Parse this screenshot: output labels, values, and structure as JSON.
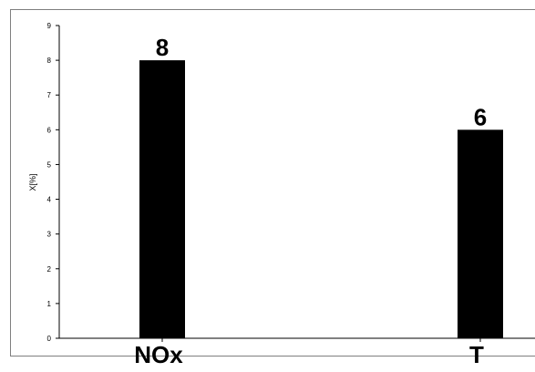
{
  "chart_data": {
    "type": "bar",
    "categories": [
      "NOx",
      "T"
    ],
    "values": [
      8,
      6
    ],
    "data_labels": [
      "8",
      "6"
    ],
    "title": "",
    "xlabel": "",
    "ylabel": "X[%]",
    "ylim": [
      0,
      9
    ],
    "yticks": [
      0,
      1,
      2,
      3,
      4,
      5,
      6,
      7,
      8,
      9
    ],
    "bar_color": "#000000",
    "grid": false,
    "legend": "none"
  }
}
